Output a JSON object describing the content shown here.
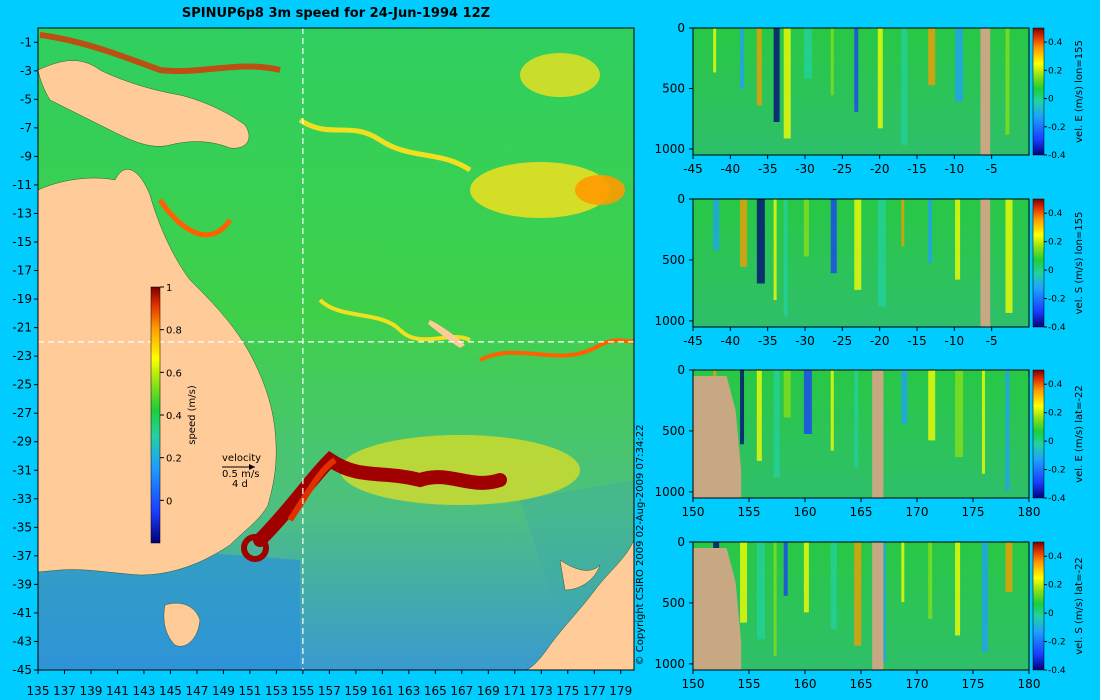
{
  "title": "SPINUP6p8 3m speed for 24-Jun-1994 12Z",
  "copyright": "© Copyright CSIRO 2009   02-Aug-2009 07:34:22",
  "colors": {
    "background": "#00ccff",
    "land": "#ffcc99",
    "land_section": "#c8a882",
    "crosshair": "#ffffff"
  },
  "velocity_key": {
    "label": "velocity",
    "speed": "0.5 m/s",
    "time": "4 d"
  },
  "chart_data": [
    {
      "type": "heatmap",
      "name": "surface-speed-map",
      "x_ticks": [
        "135",
        "137",
        "139",
        "141",
        "143",
        "145",
        "147",
        "149",
        "151",
        "153",
        "155",
        "157",
        "159",
        "161",
        "163",
        "165",
        "167",
        "169",
        "171",
        "173",
        "175",
        "177",
        "179"
      ],
      "y_ticks": [
        "-1",
        "-3",
        "-5",
        "-7",
        "-9",
        "-11",
        "-13",
        "-15",
        "-17",
        "-19",
        "-21",
        "-23",
        "-25",
        "-27",
        "-29",
        "-31",
        "-33",
        "-35",
        "-37",
        "-39",
        "-41",
        "-43",
        "-45"
      ],
      "xlim": [
        135,
        180
      ],
      "ylim": [
        -45,
        0
      ],
      "crosshair": {
        "lon": 155,
        "lat": -22
      },
      "colorbar": {
        "label": "speed (m/s)",
        "min": -0.2,
        "max": 1,
        "ticks": [
          "1",
          "0.8",
          "0.6",
          "0.4",
          "0.2",
          "0"
        ]
      }
    },
    {
      "type": "heatmap",
      "name": "section-vel-e-lon155",
      "x_ticks": [
        "-45",
        "-40",
        "-35",
        "-30",
        "-25",
        "-20",
        "-15",
        "-10",
        "-5"
      ],
      "xlim": [
        -45,
        0
      ],
      "y_ticks": [
        "0",
        "500",
        "1000"
      ],
      "ylim": [
        0,
        1050
      ],
      "colorbar": {
        "label": "vel. E (m/s) lon=155",
        "min": -0.4,
        "max": 0.5,
        "ticks": [
          "0.4",
          "0.2",
          "0",
          "-0.2",
          "-0.4"
        ]
      }
    },
    {
      "type": "heatmap",
      "name": "section-vel-s-lon155",
      "x_ticks": [
        "-45",
        "-40",
        "-35",
        "-30",
        "-25",
        "-20",
        "-15",
        "-10",
        "-5"
      ],
      "xlim": [
        -45,
        0
      ],
      "y_ticks": [
        "0",
        "500",
        "1000"
      ],
      "ylim": [
        0,
        1050
      ],
      "colorbar": {
        "label": "vel. S (m/s) lon=155",
        "min": -0.4,
        "max": 0.5,
        "ticks": [
          "0.4",
          "0.2",
          "0",
          "-0.2",
          "-0.4"
        ]
      }
    },
    {
      "type": "heatmap",
      "name": "section-vel-e-lat-22",
      "x_ticks": [
        "150",
        "155",
        "160",
        "165",
        "170",
        "175",
        "180"
      ],
      "xlim": [
        150,
        180
      ],
      "y_ticks": [
        "0",
        "500",
        "1000"
      ],
      "ylim": [
        0,
        1050
      ],
      "colorbar": {
        "label": "vel. E (m/s) lat=-22",
        "min": -0.4,
        "max": 0.5,
        "ticks": [
          "0.4",
          "0.2",
          "0",
          "-0.2",
          "-0.4"
        ]
      }
    },
    {
      "type": "heatmap",
      "name": "section-vel-s-lat-22",
      "x_ticks": [
        "150",
        "155",
        "160",
        "165",
        "170",
        "175",
        "180"
      ],
      "xlim": [
        150,
        180
      ],
      "y_ticks": [
        "0",
        "500",
        "1000"
      ],
      "ylim": [
        0,
        1050
      ],
      "colorbar": {
        "label": "vel. S (m/s) lat=-22",
        "min": -0.4,
        "max": 0.5,
        "ticks": [
          "0.4",
          "0.2",
          "0",
          "-0.2",
          "-0.4"
        ]
      }
    }
  ]
}
